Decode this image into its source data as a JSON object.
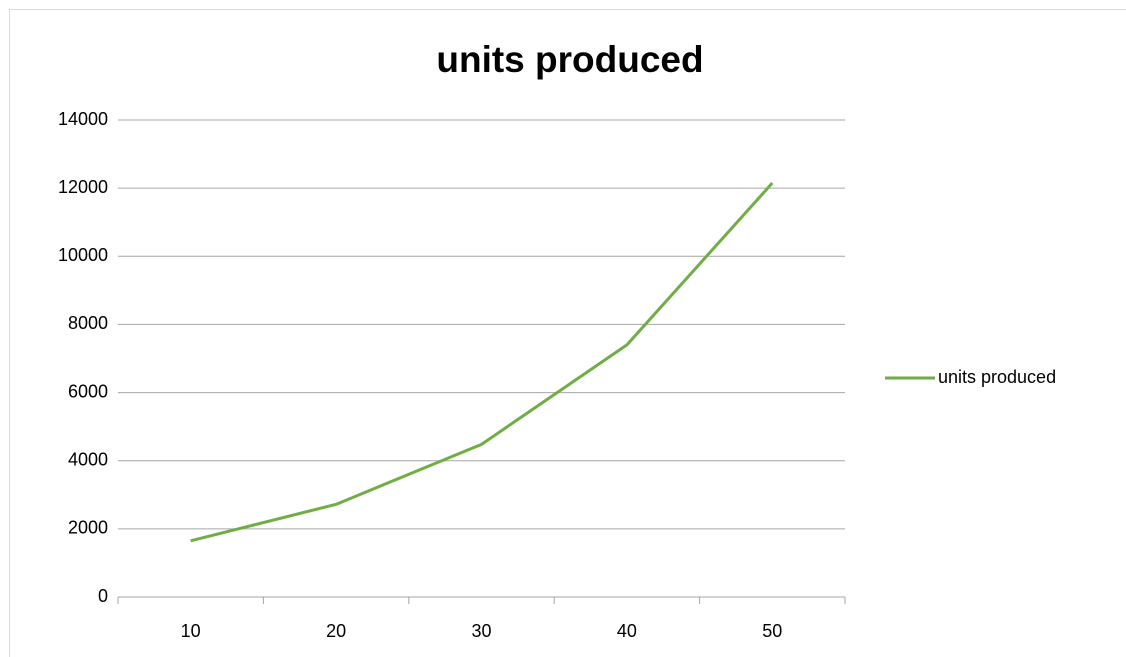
{
  "chart_data": {
    "type": "line",
    "title": "units produced",
    "categories": [
      10,
      20,
      30,
      40,
      50
    ],
    "series": [
      {
        "name": "units produced",
        "color": "#70ad47",
        "values": [
          1650,
          2720,
          4480,
          7400,
          12150
        ]
      }
    ],
    "ylim": [
      0,
      14000
    ],
    "yticks": [
      0,
      2000,
      4000,
      6000,
      8000,
      10000,
      12000,
      14000
    ],
    "grid": true,
    "legend": "right"
  }
}
